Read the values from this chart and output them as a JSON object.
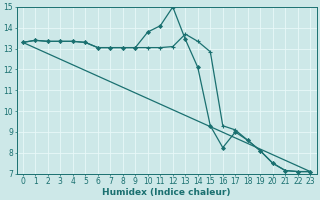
{
  "xlabel": "Humidex (Indice chaleur)",
  "background_color": "#cde8e8",
  "grid_color": "#e8f8f8",
  "line_color": "#1a7070",
  "xlim": [
    -0.5,
    23.5
  ],
  "ylim": [
    7,
    15
  ],
  "yticks": [
    7,
    8,
    9,
    10,
    11,
    12,
    13,
    14,
    15
  ],
  "xticks": [
    0,
    1,
    2,
    3,
    4,
    5,
    6,
    7,
    8,
    9,
    10,
    11,
    12,
    13,
    14,
    15,
    16,
    17,
    18,
    19,
    20,
    21,
    22,
    23
  ],
  "line1_x": [
    0,
    1,
    2,
    3,
    4,
    5,
    6,
    7,
    8,
    9,
    10,
    11,
    12,
    13,
    14,
    15,
    16,
    17,
    18,
    19,
    20,
    21,
    22,
    23
  ],
  "line1_y": [
    13.3,
    13.4,
    13.35,
    13.35,
    13.35,
    13.3,
    13.05,
    13.05,
    13.05,
    13.05,
    13.05,
    13.05,
    13.1,
    13.7,
    13.35,
    12.85,
    9.3,
    9.1,
    8.6,
    8.1,
    7.5,
    7.15,
    7.1,
    7.1
  ],
  "line2_x": [
    0,
    1,
    2,
    3,
    4,
    5,
    6,
    7,
    8,
    9,
    10,
    11,
    12,
    13,
    14,
    15,
    16,
    17,
    18,
    19,
    20,
    21,
    22,
    23
  ],
  "line2_y": [
    13.3,
    13.4,
    13.35,
    13.35,
    13.35,
    13.3,
    13.05,
    13.05,
    13.05,
    13.05,
    13.8,
    14.1,
    15.0,
    13.45,
    12.1,
    9.3,
    8.25,
    9.0,
    8.6,
    8.1,
    7.5,
    7.15,
    7.1,
    7.1
  ],
  "line3_x": [
    0,
    23
  ],
  "line3_y": [
    13.3,
    7.1
  ],
  "marker1": "+",
  "marker2": "D",
  "markersize1": 3.5,
  "markersize2": 2.0,
  "linewidth": 0.9,
  "xlabel_fontsize": 6.5,
  "tick_fontsize": 5.5
}
